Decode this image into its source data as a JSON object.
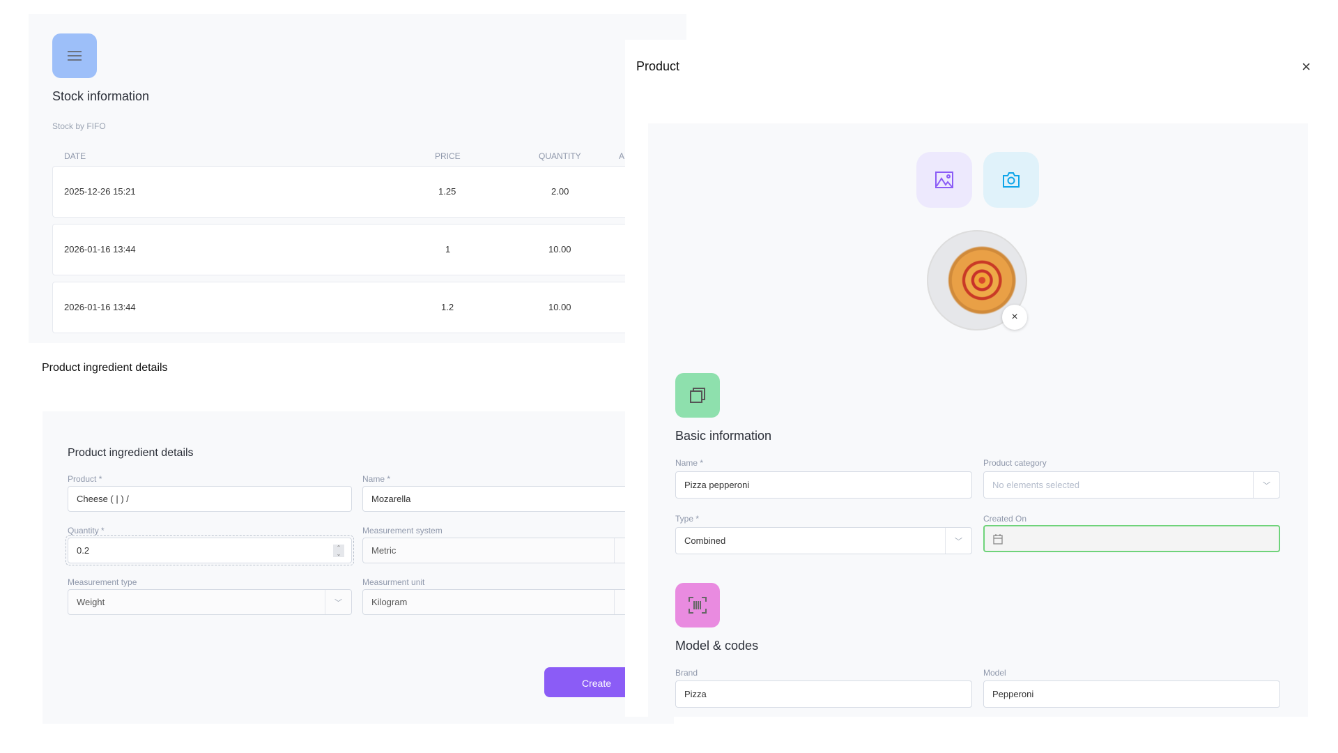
{
  "stock": {
    "title": "Stock information",
    "subtitle": "Stock by FIFO",
    "columns": [
      "DATE",
      "PRICE",
      "QUANTITY",
      "A"
    ],
    "rows": [
      {
        "date": "2025-12-26 15:21",
        "price": "1.25",
        "quantity": "2.00"
      },
      {
        "date": "2026-01-16 13:44",
        "price": "1",
        "quantity": "10.00"
      },
      {
        "date": "2026-01-16 13:44",
        "price": "1.2",
        "quantity": "10.00"
      }
    ]
  },
  "ingredient": {
    "page_heading": "Product ingredient details",
    "form_heading": "Product ingredient details",
    "product_label": "Product *",
    "product_value": "Cheese ( | ) /",
    "name_label": "Name *",
    "name_value": "Mozarella",
    "quantity_label": "Quantity *",
    "quantity_value": "0.2",
    "msystem_label": "Measurement system",
    "msystem_value": "Metric",
    "mtype_label": "Measurement type",
    "mtype_value": "Weight",
    "munit_label": "Measurment unit",
    "munit_value": "Kilogram",
    "create_label": "Create"
  },
  "drawer": {
    "title": "Product",
    "close": "×",
    "basic": {
      "title": "Basic information",
      "name_label": "Name *",
      "name_value": "Pizza pepperoni",
      "category_label": "Product category",
      "category_placeholder": "No elements selected",
      "type_label": "Type *",
      "type_value": "Combined",
      "created_label": "Created On"
    },
    "model": {
      "title": "Model & codes",
      "brand_label": "Brand",
      "brand_value": "Pizza",
      "model_label": "Model",
      "model_value": "Pepperoni"
    }
  },
  "colors": {
    "accent": "#8b5cf6",
    "menu_icon_bg": "#9dbff9",
    "basic_icon_bg": "#8ee0ad",
    "model_icon_bg": "#e98be0",
    "gallery_bg": "#ede9fd",
    "camera_bg": "#e0f2fa",
    "focus_border": "#6fd37a"
  }
}
